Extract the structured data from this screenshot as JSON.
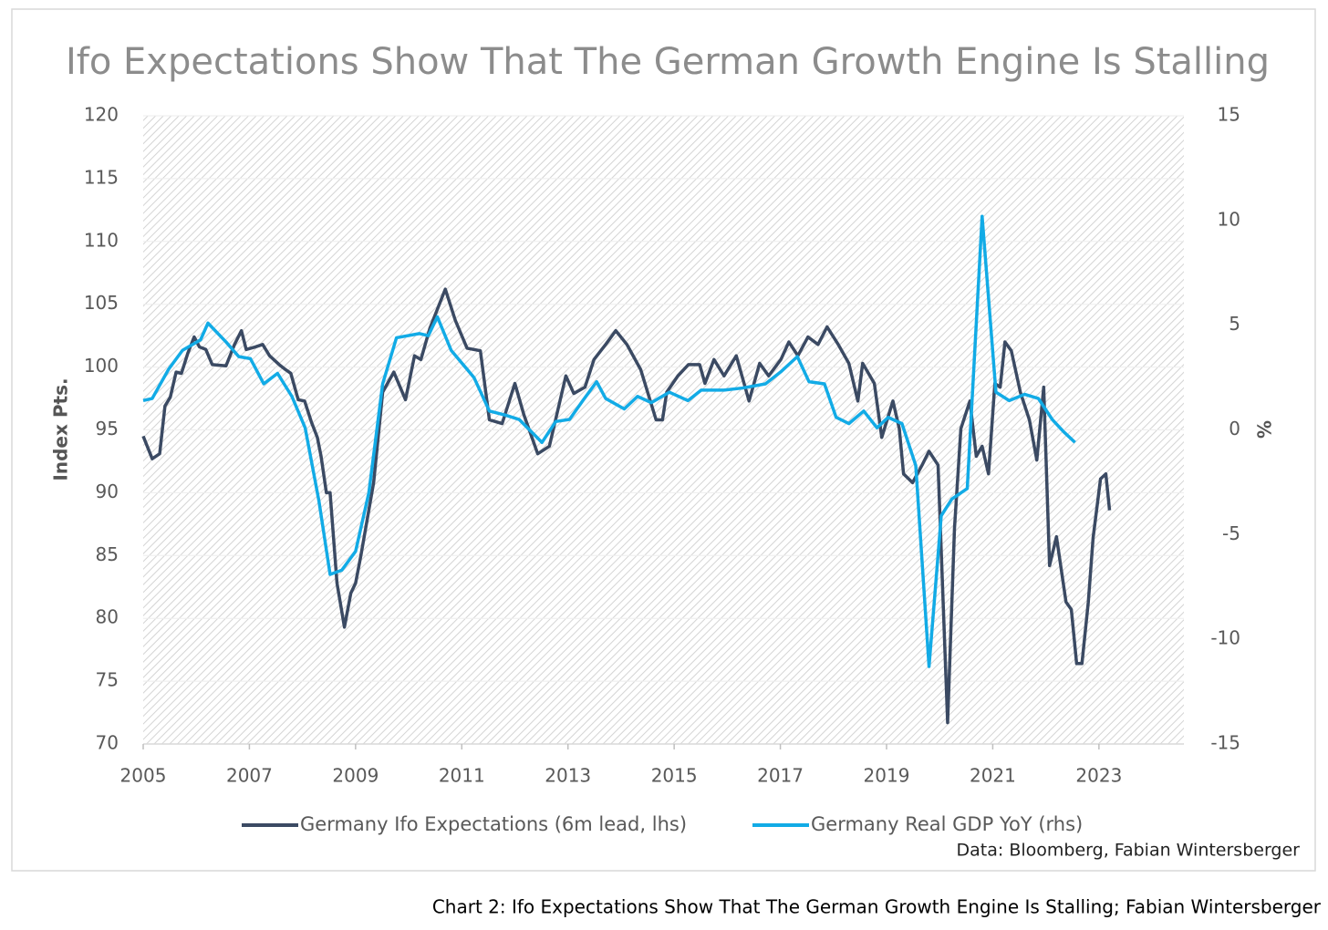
{
  "chart_data": {
    "type": "line",
    "title": "Ifo Expectations Show That The German Growth Engine Is Stalling",
    "ylabel": "Index Pts.",
    "y2label": "%",
    "source": "Data: Bloomberg, Fabian Wintersberger",
    "xlim": [
      2005,
      2024.6
    ],
    "xticks": [
      2005,
      2007,
      2009,
      2011,
      2013,
      2015,
      2017,
      2019,
      2021,
      2023
    ],
    "ylim": [
      70,
      120
    ],
    "yticks": [
      70,
      75,
      80,
      85,
      90,
      95,
      100,
      105,
      110,
      115,
      120
    ],
    "y2lim": [
      -15,
      15
    ],
    "y2ticks": [
      -15,
      -10,
      -5,
      0,
      5,
      10,
      15
    ],
    "legend": "bottom",
    "series": [
      {
        "name": "Germany Ifo Expectations (6m lead, lhs)",
        "color": "#3b4a63",
        "axis": "y",
        "x": [
          2005.0,
          2005.17,
          2005.31,
          2005.41,
          2005.51,
          2005.62,
          2005.72,
          2005.84,
          2005.96,
          2006.06,
          2006.18,
          2006.3,
          2006.56,
          2006.72,
          2006.85,
          2006.94,
          2007.11,
          2007.25,
          2007.38,
          2007.56,
          2007.68,
          2007.78,
          2007.92,
          2008.04,
          2008.17,
          2008.28,
          2008.35,
          2008.45,
          2008.52,
          2008.65,
          2008.79,
          2008.91,
          2009.0,
          2009.1,
          2009.34,
          2009.51,
          2009.72,
          2009.94,
          2010.11,
          2010.23,
          2010.4,
          2010.69,
          2010.88,
          2011.1,
          2011.35,
          2011.52,
          2011.76,
          2012.0,
          2012.17,
          2012.43,
          2012.65,
          2012.96,
          2013.11,
          2013.32,
          2013.49,
          2013.71,
          2013.9,
          2014.11,
          2014.37,
          2014.66,
          2014.78,
          2014.86,
          2015.07,
          2015.27,
          2015.48,
          2015.58,
          2015.75,
          2015.94,
          2016.17,
          2016.41,
          2016.61,
          2016.78,
          2017.01,
          2017.16,
          2017.33,
          2017.52,
          2017.71,
          2017.88,
          2018.09,
          2018.29,
          2018.46,
          2018.55,
          2018.77,
          2018.91,
          2019.12,
          2019.24,
          2019.32,
          2019.49,
          2019.67,
          2019.8,
          2019.97,
          2020.15,
          2020.28,
          2020.4,
          2020.57,
          2020.69,
          2020.8,
          2020.92,
          2021.04,
          2021.14,
          2021.23,
          2021.35,
          2021.52,
          2021.69,
          2021.83,
          2021.96,
          2022.07,
          2022.2,
          2022.38,
          2022.48,
          2022.58,
          2022.68,
          2022.8,
          2022.89,
          2023.03,
          2023.13,
          2023.2
        ],
        "values": [
          94.5,
          92.7,
          93.1,
          96.9,
          97.6,
          99.6,
          99.5,
          101.1,
          102.4,
          101.6,
          101.4,
          100.2,
          100.1,
          101.8,
          102.9,
          101.4,
          101.6,
          101.8,
          100.9,
          100.2,
          99.8,
          99.5,
          97.4,
          97.3,
          95.6,
          94.4,
          92.9,
          90.0,
          90.0,
          82.8,
          79.3,
          82.0,
          82.8,
          85.0,
          90.8,
          98.0,
          99.6,
          97.4,
          100.9,
          100.6,
          103.1,
          106.2,
          103.7,
          101.5,
          101.3,
          95.8,
          95.5,
          98.7,
          96.2,
          93.1,
          93.7,
          99.3,
          97.9,
          98.4,
          100.6,
          101.8,
          102.9,
          101.8,
          99.8,
          95.8,
          95.8,
          98.0,
          99.3,
          100.2,
          100.2,
          98.7,
          100.6,
          99.3,
          100.9,
          97.3,
          100.3,
          99.3,
          100.6,
          102.0,
          100.9,
          102.4,
          101.8,
          103.2,
          101.8,
          100.3,
          97.3,
          100.3,
          98.7,
          94.4,
          97.3,
          95.1,
          91.5,
          90.8,
          92.2,
          93.3,
          92.2,
          71.7,
          87.2,
          95.1,
          97.3,
          92.9,
          93.7,
          91.5,
          98.7,
          98.4,
          102.0,
          101.3,
          98.0,
          95.8,
          92.6,
          98.4,
          84.2,
          86.5,
          81.3,
          80.7,
          76.4,
          76.4,
          81.3,
          86.4,
          91.1,
          91.5,
          88.6
        ]
      },
      {
        "name": "Germany Real GDP YoY (rhs)",
        "color": "#12abe6",
        "axis": "y2",
        "x": [
          2005.0,
          2005.17,
          2005.48,
          2005.74,
          2006.08,
          2006.22,
          2006.56,
          2006.8,
          2007.02,
          2007.27,
          2007.53,
          2007.8,
          2008.05,
          2008.31,
          2008.52,
          2008.74,
          2009.0,
          2009.25,
          2009.51,
          2009.77,
          2010.2,
          2010.37,
          2010.54,
          2010.8,
          2011.23,
          2011.52,
          2011.83,
          2012.08,
          2012.51,
          2012.77,
          2013.03,
          2013.28,
          2013.54,
          2013.71,
          2014.06,
          2014.31,
          2014.57,
          2014.91,
          2015.26,
          2015.51,
          2015.94,
          2016.29,
          2016.72,
          2017.02,
          2017.32,
          2017.54,
          2017.83,
          2018.05,
          2018.29,
          2018.57,
          2018.82,
          2019.03,
          2019.29,
          2019.55,
          2019.8,
          2020.03,
          2020.23,
          2020.52,
          2020.8,
          2021.06,
          2021.31,
          2021.6,
          2021.86,
          2022.12,
          2022.34,
          2022.55
        ],
        "values": [
          1.4,
          1.5,
          2.9,
          3.8,
          4.3,
          5.1,
          4.2,
          3.5,
          3.4,
          2.2,
          2.7,
          1.6,
          0.1,
          -3.4,
          -6.9,
          -6.7,
          -5.8,
          -3.0,
          2.2,
          4.4,
          4.6,
          4.5,
          5.4,
          3.8,
          2.5,
          0.9,
          0.7,
          0.5,
          -0.6,
          0.4,
          0.5,
          1.4,
          2.3,
          1.5,
          1.0,
          1.6,
          1.3,
          1.8,
          1.4,
          1.9,
          1.9,
          2.0,
          2.2,
          2.8,
          3.5,
          2.3,
          2.2,
          0.6,
          0.3,
          0.9,
          0.1,
          0.6,
          0.3,
          -1.7,
          -11.3,
          -4.1,
          -3.3,
          -2.8,
          10.2,
          1.8,
          1.4,
          1.7,
          1.5,
          0.5,
          -0.1,
          -0.6
        ]
      }
    ]
  },
  "caption": "Chart 2: Ifo Expectations Show That The German Growth Engine Is Stalling; Fabian Wintersberger"
}
